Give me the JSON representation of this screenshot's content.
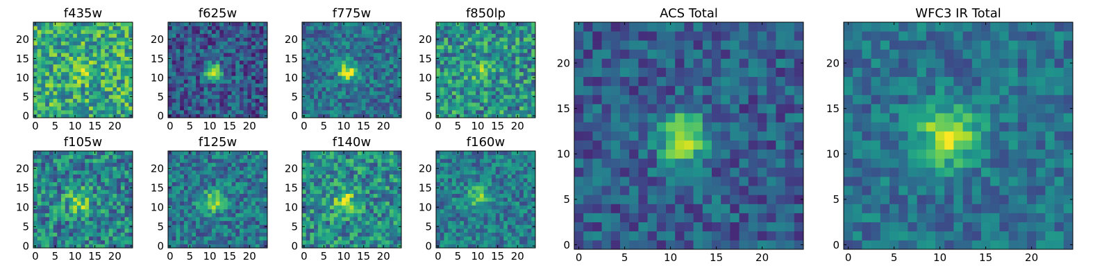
{
  "chart_data": [
    {
      "type": "heatmap",
      "title": "f435w",
      "xlim": [
        0,
        25
      ],
      "ylim": [
        0,
        25
      ],
      "xticks": [
        "0",
        "5",
        "10",
        "15",
        "20"
      ],
      "yticks": [
        "0",
        "5",
        "10",
        "15",
        "20"
      ],
      "colormap": "viridis",
      "peak_center": [
        11.5,
        12.5
      ],
      "peak_sigma": 2.2,
      "peak_amplitude": 0.18,
      "noise_level": 0.28,
      "baseline": 0.6
    },
    {
      "type": "heatmap",
      "title": "f625w",
      "xlim": [
        0,
        25
      ],
      "ylim": [
        0,
        25
      ],
      "xticks": [
        "0",
        "5",
        "10",
        "15",
        "20"
      ],
      "yticks": [
        "0",
        "5",
        "10",
        "15",
        "20"
      ],
      "colormap": "viridis",
      "peak_center": [
        11.5,
        12.0
      ],
      "peak_sigma": 1.6,
      "peak_amplitude": 0.7,
      "noise_level": 0.22,
      "baseline": 0.28
    },
    {
      "type": "heatmap",
      "title": "f775w",
      "xlim": [
        0,
        25
      ],
      "ylim": [
        0,
        25
      ],
      "xticks": [
        "0",
        "5",
        "10",
        "15",
        "20"
      ],
      "yticks": [
        "0",
        "5",
        "10",
        "15",
        "20"
      ],
      "colormap": "viridis",
      "peak_center": [
        11.5,
        12.0
      ],
      "peak_sigma": 1.6,
      "peak_amplitude": 0.6,
      "noise_level": 0.2,
      "baseline": 0.38
    },
    {
      "type": "heatmap",
      "title": "f850lp",
      "xlim": [
        0,
        25
      ],
      "ylim": [
        0,
        25
      ],
      "xticks": [
        "0",
        "5",
        "10",
        "15",
        "20"
      ],
      "yticks": [
        "0",
        "5",
        "10",
        "15",
        "20"
      ],
      "colormap": "viridis",
      "peak_center": [
        11.5,
        12.0
      ],
      "peak_sigma": 1.5,
      "peak_amplitude": 0.35,
      "noise_level": 0.28,
      "baseline": 0.5
    },
    {
      "type": "heatmap",
      "title": "f105w",
      "xlim": [
        0,
        25
      ],
      "ylim": [
        0,
        25
      ],
      "xticks": [
        "0",
        "5",
        "10",
        "15",
        "20"
      ],
      "yticks": [
        "0",
        "5",
        "10",
        "15",
        "20"
      ],
      "colormap": "viridis",
      "peak_center": [
        11.5,
        12.0
      ],
      "peak_sigma": 2.2,
      "peak_amplitude": 0.35,
      "noise_level": 0.26,
      "baseline": 0.45
    },
    {
      "type": "heatmap",
      "title": "f125w",
      "xlim": [
        0,
        25
      ],
      "ylim": [
        0,
        25
      ],
      "xticks": [
        "0",
        "5",
        "10",
        "15",
        "20"
      ],
      "yticks": [
        "0",
        "5",
        "10",
        "15",
        "20"
      ],
      "colormap": "viridis",
      "peak_center": [
        11.5,
        12.0
      ],
      "peak_sigma": 1.9,
      "peak_amplitude": 0.45,
      "noise_level": 0.22,
      "baseline": 0.4
    },
    {
      "type": "heatmap",
      "title": "f140w",
      "xlim": [
        0,
        25
      ],
      "ylim": [
        0,
        25
      ],
      "xticks": [
        "0",
        "5",
        "10",
        "15",
        "20"
      ],
      "yticks": [
        "0",
        "5",
        "10",
        "15",
        "20"
      ],
      "colormap": "viridis",
      "peak_center": [
        11.0,
        12.0
      ],
      "peak_sigma": 2.2,
      "peak_amplitude": 0.35,
      "noise_level": 0.26,
      "baseline": 0.48
    },
    {
      "type": "heatmap",
      "title": "f160w",
      "xlim": [
        0,
        25
      ],
      "ylim": [
        0,
        25
      ],
      "xticks": [
        "0",
        "5",
        "10",
        "15",
        "20"
      ],
      "yticks": [
        "0",
        "5",
        "10",
        "15",
        "20"
      ],
      "colormap": "viridis",
      "peak_center": [
        11.0,
        13.0
      ],
      "peak_sigma": 1.9,
      "peak_amplitude": 0.42,
      "noise_level": 0.2,
      "baseline": 0.42
    },
    {
      "type": "heatmap",
      "title": "ACS Total",
      "xlim": [
        0,
        25
      ],
      "ylim": [
        0,
        25
      ],
      "xticks": [
        "0",
        "5",
        "10",
        "15",
        "20"
      ],
      "yticks": [
        "0",
        "5",
        "10",
        "15",
        "20"
      ],
      "colormap": "viridis",
      "peak_center": [
        11.8,
        12.2
      ],
      "peak_sigma": 1.8,
      "peak_amplitude": 0.68,
      "noise_level": 0.18,
      "baseline": 0.3
    },
    {
      "type": "heatmap",
      "title": "WFC3 IR Total",
      "xlim": [
        0,
        25
      ],
      "ylim": [
        0,
        25
      ],
      "xticks": [
        "0",
        "5",
        "10",
        "15",
        "20"
      ],
      "yticks": [
        "0",
        "5",
        "10",
        "15",
        "20"
      ],
      "colormap": "viridis",
      "peak_center": [
        11.5,
        12.5
      ],
      "peak_sigma": 2.3,
      "peak_amplitude": 0.55,
      "noise_level": 0.16,
      "baseline": 0.38
    }
  ]
}
